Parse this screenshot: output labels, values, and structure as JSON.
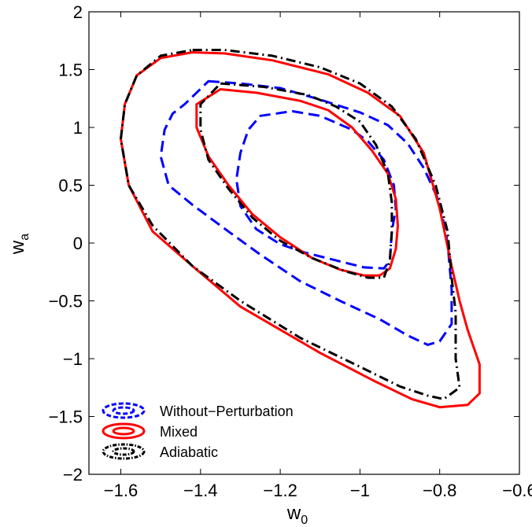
{
  "chart_data": {
    "type": "contour",
    "title": "",
    "xlabel": "w",
    "xlabel_sub": "0",
    "ylabel": "w",
    "ylabel_sub": "a",
    "xlim": [
      -1.68,
      -0.6
    ],
    "ylim": [
      -2,
      2
    ],
    "xticks": [
      -1.6,
      -1.4,
      -1.2,
      -1,
      -0.8,
      -0.6
    ],
    "yticks": [
      -2,
      -1.5,
      -1,
      -0.5,
      0,
      0.5,
      1,
      1.5,
      2
    ],
    "xtick_labels": [
      "−1.6",
      "−1.4",
      "−1.2",
      "−1",
      "−0.8",
      "−0.6"
    ],
    "ytick_labels": [
      "−2",
      "−1.5",
      "−1",
      "−0.5",
      "0",
      "0.5",
      "1",
      "1.5",
      "2"
    ],
    "grid": false,
    "legend_position": "bottom-left",
    "series": [
      {
        "name": "Without−Perturbation",
        "color": "#0000ff",
        "dash": "dash",
        "contours": [
          [
            [
              -1.17,
              1.14
            ],
            [
              -1.1,
              1.1
            ],
            [
              -1.02,
              0.98
            ],
            [
              -0.98,
              0.88
            ],
            [
              -0.94,
              0.72
            ],
            [
              -0.915,
              0.5
            ],
            [
              -0.91,
              0.3
            ],
            [
              -0.92,
              0.1
            ],
            [
              -0.925,
              -0.15
            ],
            [
              -0.94,
              -0.22
            ],
            [
              -0.99,
              -0.21
            ],
            [
              -1.06,
              -0.15
            ],
            [
              -1.14,
              -0.08
            ],
            [
              -1.2,
              -0.01
            ],
            [
              -1.26,
              0.12
            ],
            [
              -1.3,
              0.32
            ],
            [
              -1.31,
              0.55
            ],
            [
              -1.3,
              0.78
            ],
            [
              -1.28,
              0.98
            ],
            [
              -1.25,
              1.1
            ],
            [
              -1.17,
              1.14
            ]
          ],
          [
            [
              -1.38,
              1.4
            ],
            [
              -1.3,
              1.38
            ],
            [
              -1.2,
              1.34
            ],
            [
              -1.1,
              1.24
            ],
            [
              -1.0,
              1.13
            ],
            [
              -0.93,
              1.02
            ],
            [
              -0.88,
              0.86
            ],
            [
              -0.84,
              0.65
            ],
            [
              -0.8,
              0.35
            ],
            [
              -0.78,
              0.0
            ],
            [
              -0.77,
              -0.4
            ],
            [
              -0.77,
              -0.7
            ],
            [
              -0.8,
              -0.85
            ],
            [
              -0.83,
              -0.88
            ],
            [
              -0.88,
              -0.8
            ],
            [
              -0.95,
              -0.66
            ],
            [
              -1.05,
              -0.5
            ],
            [
              -1.15,
              -0.33
            ],
            [
              -1.25,
              -0.1
            ],
            [
              -1.33,
              0.1
            ],
            [
              -1.42,
              0.33
            ],
            [
              -1.48,
              0.5
            ],
            [
              -1.5,
              0.75
            ],
            [
              -1.49,
              0.98
            ],
            [
              -1.47,
              1.12
            ],
            [
              -1.44,
              1.2
            ],
            [
              -1.38,
              1.4
            ]
          ]
        ]
      },
      {
        "name": "Mixed",
        "color": "#ff0000",
        "dash": "solid",
        "contours": [
          [
            [
              -1.35,
              1.33
            ],
            [
              -1.26,
              1.3
            ],
            [
              -1.15,
              1.23
            ],
            [
              -1.08,
              1.15
            ],
            [
              -1.02,
              1.0
            ],
            [
              -0.97,
              0.8
            ],
            [
              -0.93,
              0.6
            ],
            [
              -0.91,
              0.38
            ],
            [
              -0.905,
              0.15
            ],
            [
              -0.91,
              -0.05
            ],
            [
              -0.925,
              -0.22
            ],
            [
              -0.95,
              -0.28
            ],
            [
              -0.99,
              -0.28
            ],
            [
              -1.05,
              -0.23
            ],
            [
              -1.12,
              -0.13
            ],
            [
              -1.2,
              0.05
            ],
            [
              -1.27,
              0.25
            ],
            [
              -1.33,
              0.5
            ],
            [
              -1.38,
              0.75
            ],
            [
              -1.41,
              1.0
            ],
            [
              -1.41,
              1.2
            ],
            [
              -1.35,
              1.33
            ]
          ],
          [
            [
              -1.42,
              1.65
            ],
            [
              -1.34,
              1.64
            ],
            [
              -1.22,
              1.58
            ],
            [
              -1.08,
              1.46
            ],
            [
              -0.98,
              1.3
            ],
            [
              -0.9,
              1.1
            ],
            [
              -0.84,
              0.78
            ],
            [
              -0.8,
              0.3
            ],
            [
              -0.77,
              -0.2
            ],
            [
              -0.75,
              -0.5
            ],
            [
              -0.73,
              -0.75
            ],
            [
              -0.7,
              -1.05
            ],
            [
              -0.7,
              -1.3
            ],
            [
              -0.73,
              -1.4
            ],
            [
              -0.8,
              -1.42
            ],
            [
              -0.87,
              -1.35
            ],
            [
              -0.96,
              -1.2
            ],
            [
              -1.1,
              -0.95
            ],
            [
              -1.3,
              -0.55
            ],
            [
              -1.42,
              -0.2
            ],
            [
              -1.52,
              0.1
            ],
            [
              -1.58,
              0.5
            ],
            [
              -1.6,
              0.9
            ],
            [
              -1.59,
              1.2
            ],
            [
              -1.56,
              1.45
            ],
            [
              -1.5,
              1.6
            ],
            [
              -1.42,
              1.65
            ]
          ]
        ]
      },
      {
        "name": "Adiabatic",
        "color": "#000000",
        "dash": "dashdot",
        "contours": [
          [
            [
              -1.35,
              1.38
            ],
            [
              -1.24,
              1.35
            ],
            [
              -1.13,
              1.28
            ],
            [
              -1.06,
              1.18
            ],
            [
              -1.0,
              1.05
            ],
            [
              -0.96,
              0.85
            ],
            [
              -0.93,
              0.6
            ],
            [
              -0.92,
              0.35
            ],
            [
              -0.92,
              0.1
            ],
            [
              -0.925,
              -0.15
            ],
            [
              -0.94,
              -0.3
            ],
            [
              -0.98,
              -0.3
            ],
            [
              -1.04,
              -0.24
            ],
            [
              -1.12,
              -0.13
            ],
            [
              -1.2,
              0.02
            ],
            [
              -1.27,
              0.22
            ],
            [
              -1.33,
              0.47
            ],
            [
              -1.38,
              0.72
            ],
            [
              -1.4,
              0.98
            ],
            [
              -1.4,
              1.2
            ],
            [
              -1.35,
              1.38
            ]
          ],
          [
            [
              -1.42,
              1.67
            ],
            [
              -1.34,
              1.67
            ],
            [
              -1.22,
              1.62
            ],
            [
              -1.1,
              1.52
            ],
            [
              -1.0,
              1.38
            ],
            [
              -0.92,
              1.18
            ],
            [
              -0.86,
              0.9
            ],
            [
              -0.81,
              0.5
            ],
            [
              -0.78,
              0.1
            ],
            [
              -0.77,
              -0.3
            ],
            [
              -0.76,
              -0.6
            ],
            [
              -0.76,
              -1.0
            ],
            [
              -0.75,
              -1.25
            ],
            [
              -0.79,
              -1.35
            ],
            [
              -0.83,
              -1.32
            ],
            [
              -0.9,
              -1.24
            ],
            [
              -1.0,
              -1.07
            ],
            [
              -1.15,
              -0.82
            ],
            [
              -1.3,
              -0.5
            ],
            [
              -1.42,
              -0.2
            ],
            [
              -1.52,
              0.15
            ],
            [
              -1.58,
              0.5
            ],
            [
              -1.6,
              0.9
            ],
            [
              -1.59,
              1.2
            ],
            [
              -1.56,
              1.45
            ],
            [
              -1.5,
              1.62
            ],
            [
              -1.42,
              1.67
            ]
          ]
        ]
      }
    ]
  }
}
